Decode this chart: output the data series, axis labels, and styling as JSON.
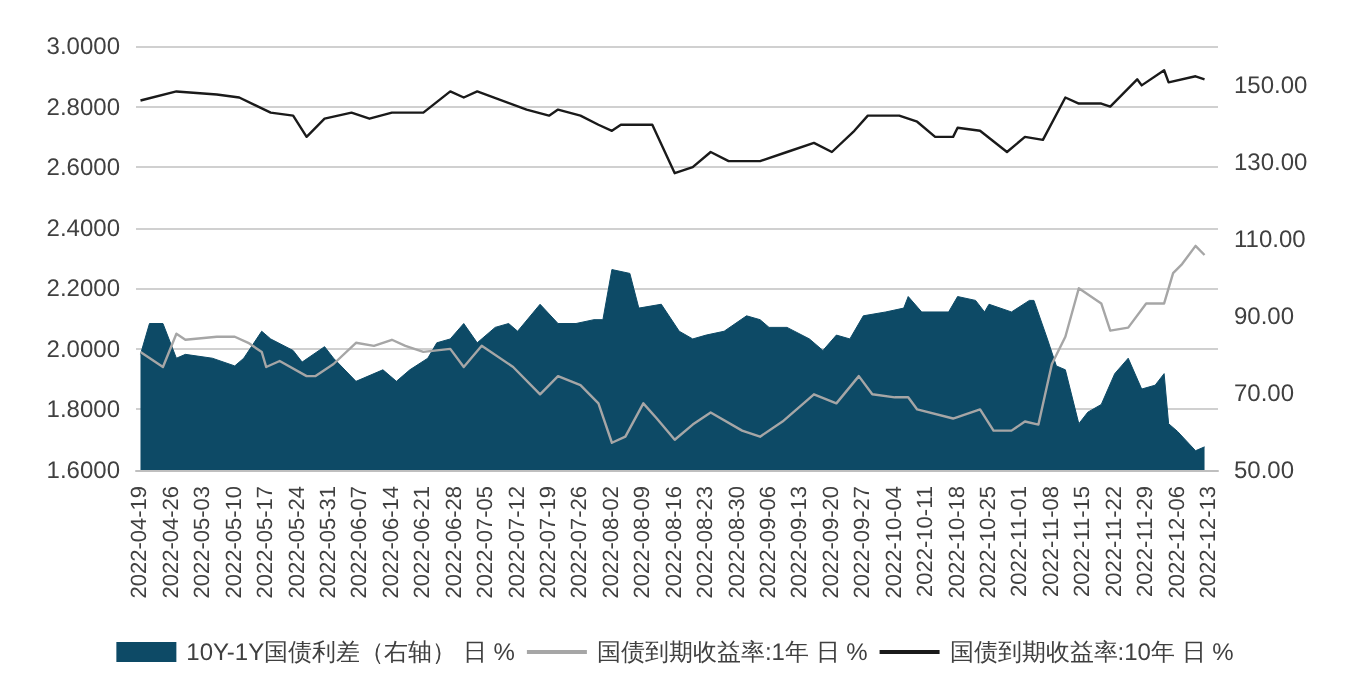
{
  "chart_data": {
    "type": "line",
    "legend": "bottom",
    "grid": "y",
    "marker": "none",
    "line_style": "solid",
    "xlim": [
      "2022-04-18",
      "2022-12-15"
    ],
    "xticks": [
      "2022-04-19",
      "2022-04-26",
      "2022-05-03",
      "2022-05-10",
      "2022-05-17",
      "2022-05-24",
      "2022-05-31",
      "2022-06-07",
      "2022-06-14",
      "2022-06-21",
      "2022-06-28",
      "2022-07-05",
      "2022-07-12",
      "2022-07-19",
      "2022-07-26",
      "2022-08-02",
      "2022-08-09",
      "2022-08-16",
      "2022-08-23",
      "2022-08-30",
      "2022-09-06",
      "2022-09-13",
      "2022-09-20",
      "2022-09-27",
      "2022-10-04",
      "2022-10-11",
      "2022-10-18",
      "2022-10-25",
      "2022-11-01",
      "2022-11-08",
      "2022-11-15",
      "2022-11-22",
      "2022-11-29",
      "2022-12-06",
      "2022-12-13"
    ],
    "ylim": [
      1.6,
      3.0
    ],
    "yticks": [
      {
        "value": 1.6,
        "label": "1.6000"
      },
      {
        "value": 1.8,
        "label": "1.8000"
      },
      {
        "value": 2.0,
        "label": "2.0000"
      },
      {
        "value": 2.2,
        "label": "2.2000"
      },
      {
        "value": 2.4,
        "label": "2.4000"
      },
      {
        "value": 2.6,
        "label": "2.6000"
      },
      {
        "value": 2.8,
        "label": "2.8000"
      },
      {
        "value": 3.0,
        "label": "3.0000"
      }
    ],
    "y2lim": [
      50,
      160
    ],
    "y2ticks": [
      {
        "value": 50,
        "label": "50.00"
      },
      {
        "value": 70,
        "label": "70.00"
      },
      {
        "value": 90,
        "label": "90.00"
      },
      {
        "value": 110,
        "label": "110.00"
      },
      {
        "value": 130,
        "label": "130.00"
      },
      {
        "value": 150,
        "label": "150.00"
      }
    ],
    "series": [
      {
        "name": "10Y-1Y国债利差（右轴） 日 %",
        "type": "area",
        "axis": "y2",
        "color": "#0d4a66",
        "x": [
          "2022-04-19",
          "2022-04-21",
          "2022-04-24",
          "2022-04-27",
          "2022-04-29",
          "2022-05-05",
          "2022-05-10",
          "2022-05-12",
          "2022-05-16",
          "2022-05-18",
          "2022-05-23",
          "2022-05-25",
          "2022-05-30",
          "2022-06-01",
          "2022-06-06",
          "2022-06-12",
          "2022-06-15",
          "2022-06-18",
          "2022-06-22",
          "2022-06-24",
          "2022-06-27",
          "2022-06-30",
          "2022-07-03",
          "2022-07-07",
          "2022-07-10",
          "2022-07-12",
          "2022-07-17",
          "2022-07-21",
          "2022-07-25",
          "2022-07-29",
          "2022-07-31",
          "2022-08-02",
          "2022-08-06",
          "2022-08-08",
          "2022-08-13",
          "2022-08-17",
          "2022-08-20",
          "2022-08-23",
          "2022-08-27",
          "2022-09-01",
          "2022-09-04",
          "2022-09-06",
          "2022-09-10",
          "2022-09-15",
          "2022-09-18",
          "2022-09-21",
          "2022-09-24",
          "2022-09-27",
          "2022-10-02",
          "2022-10-06",
          "2022-10-07",
          "2022-10-10",
          "2022-10-16",
          "2022-10-18",
          "2022-10-22",
          "2022-10-24",
          "2022-10-25",
          "2022-10-30",
          "2022-11-03",
          "2022-11-04",
          "2022-11-07",
          "2022-11-09",
          "2022-11-11",
          "2022-11-14",
          "2022-11-16",
          "2022-11-19",
          "2022-11-22",
          "2022-11-25",
          "2022-11-28",
          "2022-12-01",
          "2022-12-03",
          "2022-12-04",
          "2022-12-06",
          "2022-12-10",
          "2022-12-12"
        ],
        "values": [
          80,
          88,
          88,
          79,
          80,
          79,
          77,
          79,
          86,
          84,
          81,
          78,
          82,
          79,
          73,
          76,
          73,
          76,
          79,
          83,
          84,
          88,
          83,
          87,
          88,
          86,
          93,
          88,
          88,
          89,
          89,
          102,
          101,
          92,
          93,
          86,
          84,
          85,
          86,
          90,
          89,
          87,
          87,
          84,
          81,
          85,
          84,
          90,
          91,
          92,
          95,
          91,
          91,
          95,
          94,
          91,
          93,
          91,
          94,
          94,
          84,
          77,
          76,
          62,
          65,
          67,
          75,
          79,
          71,
          72,
          75,
          62,
          60,
          55,
          56
        ]
      },
      {
        "name": "国债到期收益率:1年 日 %",
        "axis": "y",
        "color": "#a6a6a6",
        "x": [
          "2022-04-19",
          "2022-04-21",
          "2022-04-24",
          "2022-04-27",
          "2022-04-29",
          "2022-05-06",
          "2022-05-10",
          "2022-05-13",
          "2022-05-16",
          "2022-05-17",
          "2022-05-20",
          "2022-05-26",
          "2022-05-28",
          "2022-06-01",
          "2022-06-06",
          "2022-06-10",
          "2022-06-14",
          "2022-06-17",
          "2022-06-21",
          "2022-06-27",
          "2022-06-30",
          "2022-07-04",
          "2022-07-11",
          "2022-07-17",
          "2022-07-21",
          "2022-07-26",
          "2022-07-30",
          "2022-08-02",
          "2022-08-05",
          "2022-08-09",
          "2022-08-12",
          "2022-08-16",
          "2022-08-20",
          "2022-08-24",
          "2022-08-31",
          "2022-09-04",
          "2022-09-09",
          "2022-09-16",
          "2022-09-21",
          "2022-09-26",
          "2022-09-29",
          "2022-10-04",
          "2022-10-07",
          "2022-10-09",
          "2022-10-17",
          "2022-10-23",
          "2022-10-26",
          "2022-10-30",
          "2022-11-02",
          "2022-11-05",
          "2022-11-08",
          "2022-11-11",
          "2022-11-14",
          "2022-11-19",
          "2022-11-21",
          "2022-11-25",
          "2022-11-29",
          "2022-12-03",
          "2022-12-05",
          "2022-12-07",
          "2022-12-10",
          "2022-12-12"
        ],
        "values": [
          1.99,
          1.97,
          1.94,
          2.05,
          2.03,
          2.04,
          2.04,
          2.02,
          1.99,
          1.94,
          1.96,
          1.91,
          1.91,
          1.95,
          2.02,
          2.01,
          2.03,
          2.01,
          1.99,
          2.0,
          1.94,
          2.01,
          1.94,
          1.85,
          1.91,
          1.88,
          1.82,
          1.69,
          1.71,
          1.82,
          1.77,
          1.7,
          1.75,
          1.79,
          1.73,
          1.71,
          1.76,
          1.85,
          1.82,
          1.91,
          1.85,
          1.84,
          1.84,
          1.8,
          1.77,
          1.8,
          1.73,
          1.73,
          1.76,
          1.75,
          1.95,
          2.04,
          2.2,
          2.15,
          2.06,
          2.07,
          2.15,
          2.15,
          2.25,
          2.28,
          2.34,
          2.31
        ]
      },
      {
        "name": "国债到期收益率:10年 日 %",
        "axis": "y",
        "color": "#1a1a1a",
        "x": [
          "2022-04-19",
          "2022-04-27",
          "2022-05-06",
          "2022-05-11",
          "2022-05-18",
          "2022-05-23",
          "2022-05-26",
          "2022-05-30",
          "2022-06-05",
          "2022-06-09",
          "2022-06-14",
          "2022-06-21",
          "2022-06-27",
          "2022-06-30",
          "2022-07-03",
          "2022-07-14",
          "2022-07-19",
          "2022-07-21",
          "2022-07-26",
          "2022-07-30",
          "2022-08-02",
          "2022-08-04",
          "2022-08-11",
          "2022-08-16",
          "2022-08-20",
          "2022-08-24",
          "2022-08-28",
          "2022-09-04",
          "2022-09-10",
          "2022-09-16",
          "2022-09-20",
          "2022-09-25",
          "2022-09-28",
          "2022-10-05",
          "2022-10-09",
          "2022-10-13",
          "2022-10-17",
          "2022-10-18",
          "2022-10-23",
          "2022-10-29",
          "2022-11-02",
          "2022-11-06",
          "2022-11-11",
          "2022-11-14",
          "2022-11-19",
          "2022-11-21",
          "2022-11-27",
          "2022-11-28",
          "2022-12-03",
          "2022-12-04",
          "2022-12-10",
          "2022-12-12"
        ],
        "values": [
          2.82,
          2.85,
          2.84,
          2.83,
          2.78,
          2.77,
          2.7,
          2.76,
          2.78,
          2.76,
          2.78,
          2.78,
          2.85,
          2.83,
          2.85,
          2.79,
          2.77,
          2.79,
          2.77,
          2.74,
          2.72,
          2.74,
          2.74,
          2.58,
          2.6,
          2.65,
          2.62,
          2.62,
          2.65,
          2.68,
          2.65,
          2.72,
          2.77,
          2.77,
          2.75,
          2.7,
          2.7,
          2.73,
          2.72,
          2.65,
          2.7,
          2.69,
          2.83,
          2.81,
          2.81,
          2.8,
          2.89,
          2.87,
          2.92,
          2.88,
          2.9,
          2.89
        ]
      }
    ]
  }
}
